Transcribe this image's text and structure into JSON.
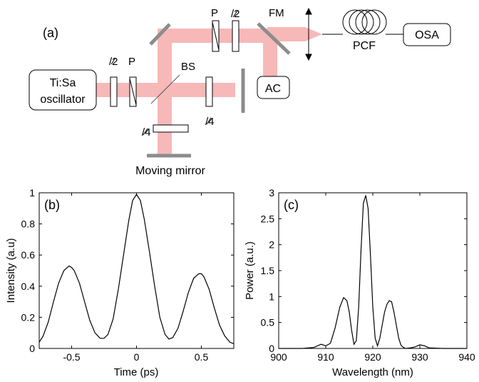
{
  "setup": {
    "panel_label": "(a)",
    "components": {
      "source": [
        "Ti:Sa",
        "oscillator"
      ],
      "beam_splitter": "BS",
      "half_wave_1": "/2",
      "polarizer_1": "P",
      "polarizer_2": "P",
      "half_wave_2": "/2",
      "quarter_wave_1": "/4",
      "quarter_wave_2": "/4",
      "flip_mirror": "FM",
      "autocorrelator": "AC",
      "fiber": "PCF",
      "analyzer": "OSA",
      "moving_mirror": "Moving mirror"
    },
    "colors": {
      "beam": "#f7b8b8",
      "mirror": "#8c8c8c",
      "outline": "#000000"
    }
  },
  "chart_data": [
    {
      "panel_label": "(b)",
      "type": "line",
      "xlabel": "Time (ps)",
      "ylabel": "Intensity (a.u)",
      "xlim": [
        -0.75,
        0.75
      ],
      "ylim": [
        0,
        1
      ],
      "xticks": [
        -0.5,
        0,
        0.5
      ],
      "xtick_labels": [
        "-0.5",
        "0",
        "0.5"
      ],
      "yticks": [
        0,
        0.2,
        0.4,
        0.6,
        0.8,
        1
      ],
      "ytick_labels": [
        "0",
        "0.2",
        "0.4",
        "0.6",
        "0.8",
        "1"
      ],
      "grid": false,
      "series": [
        {
          "x": [
            -0.75,
            -0.72,
            -0.68,
            -0.64,
            -0.6,
            -0.56,
            -0.52,
            -0.5,
            -0.48,
            -0.44,
            -0.4,
            -0.36,
            -0.32,
            -0.28,
            -0.25,
            -0.22,
            -0.18,
            -0.14,
            -0.1,
            -0.06,
            -0.03,
            0,
            0.03,
            0.06,
            0.1,
            0.14,
            0.18,
            0.22,
            0.25,
            0.28,
            0.32,
            0.36,
            0.4,
            0.44,
            0.48,
            0.5,
            0.52,
            0.56,
            0.6,
            0.64,
            0.68,
            0.72,
            0.75
          ],
          "y": [
            0.04,
            0.08,
            0.17,
            0.3,
            0.42,
            0.5,
            0.53,
            0.52,
            0.5,
            0.42,
            0.3,
            0.18,
            0.1,
            0.065,
            0.065,
            0.09,
            0.19,
            0.38,
            0.6,
            0.82,
            0.95,
            0.99,
            0.95,
            0.83,
            0.62,
            0.4,
            0.2,
            0.09,
            0.06,
            0.07,
            0.13,
            0.24,
            0.36,
            0.45,
            0.48,
            0.48,
            0.46,
            0.38,
            0.26,
            0.15,
            0.08,
            0.04,
            0.03
          ]
        }
      ]
    },
    {
      "panel_label": "(c)",
      "type": "line",
      "xlabel": "Wavelength (nm)",
      "ylabel": "Power (a.u.)",
      "xlim": [
        900,
        940
      ],
      "ylim": [
        0,
        3
      ],
      "xticks": [
        900,
        910,
        920,
        930,
        940
      ],
      "xtick_labels": [
        "900",
        "910",
        "920",
        "930",
        "940"
      ],
      "yticks": [
        0,
        0.5,
        1,
        1.5,
        2,
        2.5,
        3
      ],
      "ytick_labels": [
        "0",
        "0.5",
        "1",
        "1.5",
        "2",
        "2.5",
        "3"
      ],
      "grid": false,
      "series": [
        {
          "x": [
            900,
            905,
            907.5,
            909,
            910,
            911,
            912,
            913,
            913.8,
            914.5,
            915,
            915.5,
            916,
            916.5,
            917,
            917.5,
            918,
            918.5,
            919,
            919.5,
            920,
            920.5,
            921,
            921.5,
            922,
            922.5,
            923,
            923.5,
            924,
            924.5,
            925,
            925.5,
            926,
            926.5,
            927,
            928,
            929,
            930,
            931,
            932,
            935,
            940
          ],
          "y": [
            0,
            0,
            0.02,
            0.08,
            0.05,
            0.1,
            0.4,
            0.8,
            0.98,
            0.92,
            0.7,
            0.35,
            0.08,
            0.15,
            0.8,
            1.9,
            2.8,
            2.95,
            2.7,
            1.8,
            0.8,
            0.2,
            0.05,
            0.2,
            0.45,
            0.7,
            0.85,
            0.92,
            0.9,
            0.7,
            0.45,
            0.2,
            0.06,
            0.02,
            0,
            0.01,
            0.03,
            0.07,
            0.05,
            0.01,
            0,
            0
          ]
        }
      ]
    }
  ]
}
